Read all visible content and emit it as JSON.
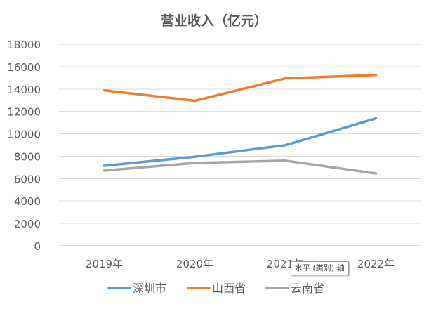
{
  "chart_data": {
    "type": "line",
    "title": "营业收入（亿元）",
    "categories": [
      "2019年",
      "2020年",
      "2021年",
      "2022年"
    ],
    "series": [
      {
        "name": "深圳市",
        "color": "#5b9bd5",
        "values": [
          7150,
          7950,
          8980,
          11380
        ]
      },
      {
        "name": "山西省",
        "color": "#ed7d31",
        "values": [
          13880,
          12950,
          14950,
          15260
        ]
      },
      {
        "name": "云南省",
        "color": "#a5a5a5",
        "values": [
          6720,
          7400,
          7600,
          6460
        ]
      }
    ],
    "ylim": [
      0,
      18000
    ],
    "yticks": [
      "0",
      "2000",
      "4000",
      "6000",
      "8000",
      "10000",
      "12000",
      "14000",
      "16000",
      "18000"
    ],
    "grid": true,
    "legend_position": "bottom"
  },
  "tooltip": {
    "text": "水平 (类别) 轴"
  }
}
